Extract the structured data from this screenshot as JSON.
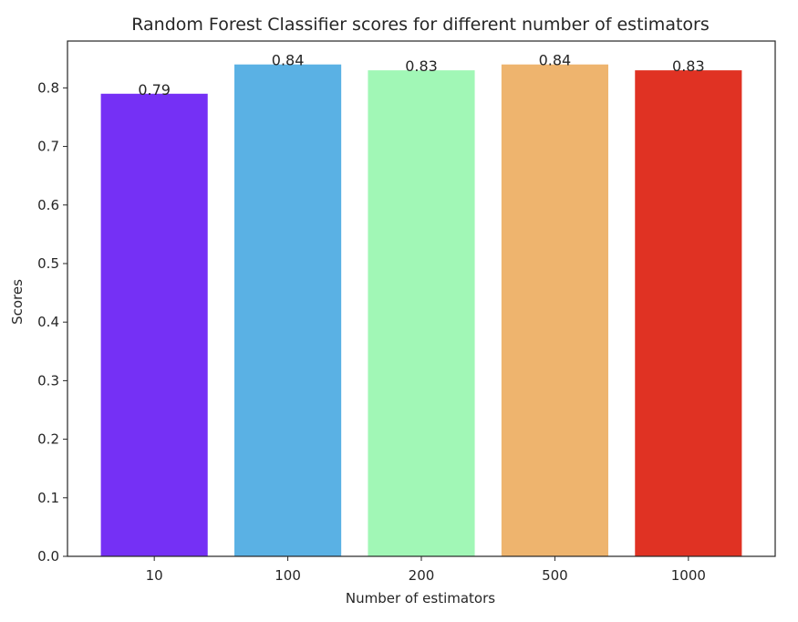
{
  "chart_data": {
    "type": "bar",
    "title": "Random Forest Classifier scores for different number of estimators",
    "xlabel": "Number of estimators",
    "ylabel": "Scores",
    "categories": [
      "10",
      "100",
      "200",
      "500",
      "1000"
    ],
    "values": [
      0.79,
      0.84,
      0.83,
      0.84,
      0.83
    ],
    "data_labels": [
      "0.79",
      "0.84",
      "0.83",
      "0.84",
      "0.83"
    ],
    "colors": [
      "#7530f5",
      "#5ab1e4",
      "#a1f7b6",
      "#eeb46e",
      "#e03223"
    ],
    "ylim": [
      0,
      0.88
    ],
    "yticks": [
      0.0,
      0.1,
      0.2,
      0.3,
      0.4,
      0.5,
      0.6,
      0.7,
      0.8
    ],
    "ytick_labels": [
      "0.0",
      "0.1",
      "0.2",
      "0.3",
      "0.4",
      "0.5",
      "0.6",
      "0.7",
      "0.8"
    ],
    "grid": false,
    "legend": "none"
  }
}
